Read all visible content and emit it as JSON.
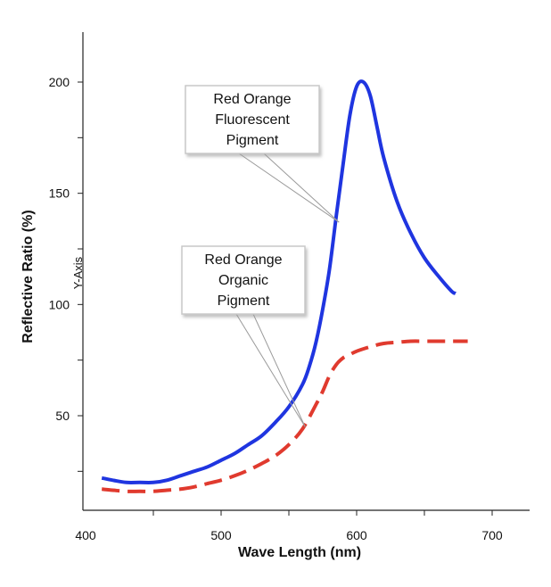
{
  "chart_data": {
    "type": "line",
    "xlabel": "Wave Length (nm)",
    "ylabel": "Reflective Ratio (%)",
    "y_axis_marker": "Y-Axis",
    "xlim": [
      400,
      700
    ],
    "ylim": [
      0,
      220
    ],
    "x_ticks": [
      400,
      500,
      600,
      700
    ],
    "y_ticks": [
      50,
      100,
      150,
      200
    ],
    "grid": false,
    "series": [
      {
        "name": "Red Orange Fluorescent Pigment",
        "color": "#1f35e0",
        "style": "solid",
        "x": [
          412,
          420,
          430,
          440,
          450,
          460,
          470,
          480,
          490,
          500,
          510,
          520,
          530,
          540,
          550,
          560,
          565,
          570,
          575,
          580,
          585,
          590,
          595,
          600,
          605,
          610,
          615,
          620,
          630,
          640,
          650,
          660,
          670,
          673
        ],
        "y": [
          22,
          21,
          20,
          20,
          20,
          21,
          23,
          25,
          27,
          30,
          33,
          37,
          41,
          47,
          54,
          64,
          72,
          83,
          98,
          116,
          140,
          163,
          185,
          198,
          200,
          194,
          180,
          166,
          146,
          132,
          121,
          113,
          106,
          105
        ]
      },
      {
        "name": "Red Orange Organic Pigment",
        "color": "#e03a2e",
        "style": "dashed",
        "x": [
          412,
          420,
          430,
          440,
          450,
          460,
          470,
          480,
          490,
          500,
          510,
          520,
          530,
          540,
          550,
          560,
          570,
          575,
          580,
          585,
          590,
          595,
          600,
          610,
          620,
          630,
          640,
          650,
          660,
          670,
          682
        ],
        "y": [
          17,
          16.5,
          16,
          16,
          16,
          16.5,
          17,
          18,
          19.5,
          21,
          23,
          25.5,
          28.5,
          32,
          37,
          44,
          55,
          61,
          68,
          73,
          76,
          77.5,
          79,
          81,
          82.5,
          83,
          83.5,
          83.5,
          83.5,
          83.5,
          83.5
        ]
      }
    ],
    "annotations": [
      {
        "lines": [
          "Red Orange",
          "Fluorescent",
          "Pigment"
        ],
        "points_to": [
          587,
          137
        ]
      },
      {
        "lines": [
          "Red Orange",
          "Organic",
          "Pigment"
        ],
        "points_to": [
          562,
          45
        ]
      }
    ]
  }
}
